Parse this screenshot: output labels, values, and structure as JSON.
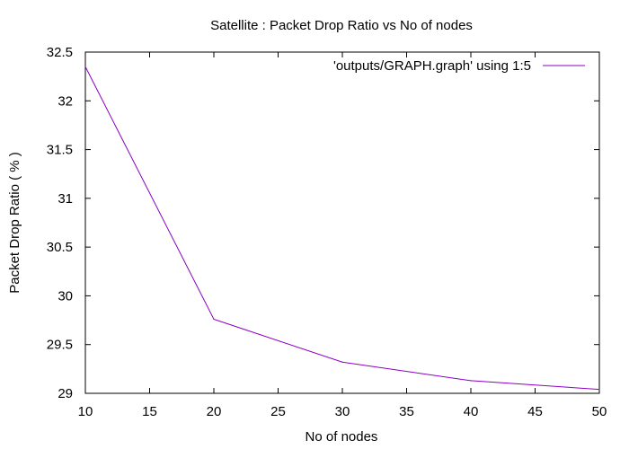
{
  "chart_data": {
    "type": "line",
    "title": "Satellite : Packet Drop Ratio vs No of nodes",
    "xlabel": "No of nodes",
    "ylabel": "Packet Drop Ratio ( % )",
    "xlim": [
      10,
      50
    ],
    "ylim": [
      29,
      32.5
    ],
    "xticks": [
      "10",
      "15",
      "20",
      "25",
      "30",
      "35",
      "40",
      "45",
      "50"
    ],
    "yticks": [
      "29",
      "29.5",
      "30",
      "30.5",
      "31",
      "31.5",
      "32",
      "32.5"
    ],
    "grid": false,
    "legend_position": "top-right",
    "series": [
      {
        "name": "'outputs/GRAPH.graph' using 1:5",
        "color": "#8b00c4",
        "x": [
          10,
          20,
          30,
          40,
          50
        ],
        "y": [
          32.35,
          29.76,
          29.32,
          29.13,
          29.04
        ]
      }
    ]
  }
}
